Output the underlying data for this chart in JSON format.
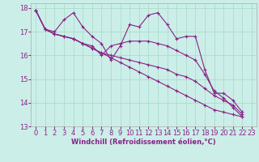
{
  "xlabel": "Windchill (Refroidissement éolien,°C)",
  "bg_color": "#cceee8",
  "line_color": "#882288",
  "grid_color": "#aaddcc",
  "xlim": [
    -0.5,
    23.5
  ],
  "ylim": [
    13,
    18.2
  ],
  "yticks": [
    13,
    14,
    15,
    16,
    17,
    18
  ],
  "xticks": [
    0,
    1,
    2,
    3,
    4,
    5,
    6,
    7,
    8,
    9,
    10,
    11,
    12,
    13,
    14,
    15,
    16,
    17,
    18,
    19,
    20,
    21,
    22,
    23
  ],
  "series": [
    [
      17.9,
      17.1,
      17.0,
      17.5,
      17.8,
      17.2,
      16.8,
      16.5,
      15.8,
      16.4,
      17.3,
      17.2,
      17.7,
      17.8,
      17.3,
      16.7,
      16.8,
      16.8,
      15.4,
      14.4,
      14.4,
      14.1,
      13.6
    ],
    [
      17.9,
      17.1,
      16.9,
      16.8,
      16.7,
      16.5,
      16.4,
      16.0,
      16.4,
      16.5,
      16.6,
      16.6,
      16.6,
      16.5,
      16.4,
      16.2,
      16.0,
      15.8,
      15.2,
      14.5,
      14.2,
      13.8,
      13.4
    ],
    [
      17.9,
      17.1,
      16.9,
      16.8,
      16.7,
      16.5,
      16.3,
      16.1,
      16.0,
      15.9,
      15.8,
      15.7,
      15.6,
      15.5,
      15.4,
      15.2,
      15.1,
      14.9,
      14.6,
      14.3,
      14.1,
      13.9,
      13.5
    ],
    [
      17.9,
      17.1,
      16.9,
      16.8,
      16.7,
      16.5,
      16.3,
      16.1,
      15.9,
      15.7,
      15.5,
      15.3,
      15.1,
      14.9,
      14.7,
      14.5,
      14.3,
      14.1,
      13.9,
      13.7,
      13.6,
      13.5,
      13.4
    ]
  ],
  "marker": "+",
  "markersize": 3.5,
  "linewidth": 0.8,
  "tick_fontsize": 6,
  "xlabel_fontsize": 6
}
